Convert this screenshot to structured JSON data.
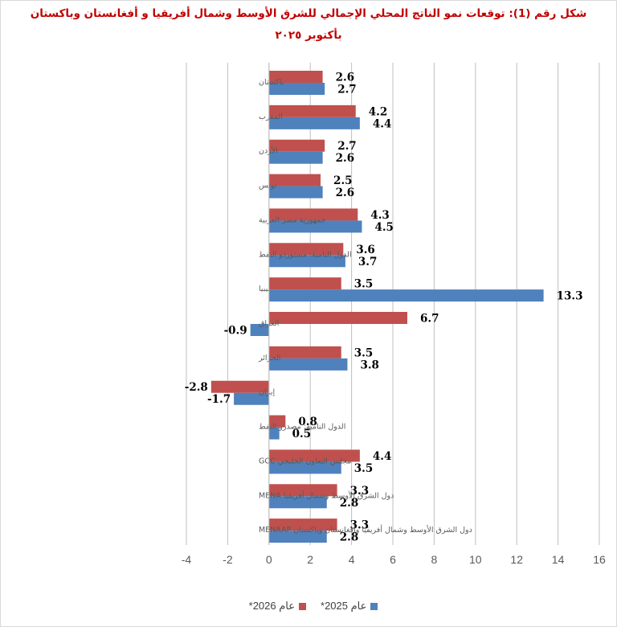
{
  "chart_data": {
    "type": "bar",
    "orientation": "horizontal",
    "title": "شكل رقم (1): توقعات نمو الناتج المحلي الإجمالي للشرق الأوسط وشمال أفريقيا و أفغانستان وباكستان بأكتوبر ٢٠٢٥",
    "xlim": [
      -4,
      16
    ],
    "x_ticks": [
      -4,
      -2,
      0,
      2,
      4,
      6,
      8,
      10,
      12,
      14,
      16
    ],
    "grid": true,
    "legend_position": "bottom",
    "categories": [
      "باكستان",
      "المغرب",
      "الأردن",
      "تونس",
      "جمهورية مصر العربية",
      "الدول النامية: مستوردو النفط",
      "ليبيا",
      "العراق",
      "الجزائر",
      "إيران",
      "الدول النامية: مصدرو النفط",
      "مجلس التعاون الخليجي GCC",
      "دول الشرق الأوسط وشمال أفريقيا MENA",
      "دول الشرق الأوسط وشمال أفريقيا وأفغانستان وباكستان MENAAP"
    ],
    "series": [
      {
        "name": "عام 2026*",
        "color": "#c0504d",
        "values": [
          2.6,
          4.2,
          2.7,
          2.5,
          4.3,
          3.6,
          3.5,
          6.7,
          3.5,
          -2.8,
          0.8,
          4.4,
          3.3,
          3.3
        ]
      },
      {
        "name": "عام 2025*",
        "color": "#4f81bd",
        "values": [
          2.7,
          4.4,
          2.6,
          2.6,
          4.5,
          3.7,
          13.3,
          -0.9,
          3.8,
          -1.7,
          0.5,
          3.5,
          2.8,
          2.8
        ]
      }
    ]
  }
}
